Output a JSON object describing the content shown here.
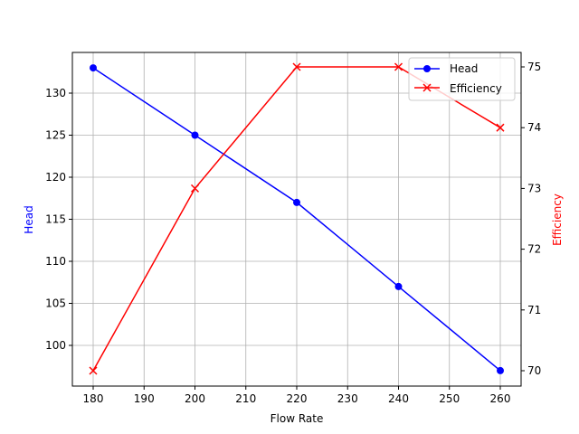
{
  "chart_data": {
    "type": "line",
    "title": "",
    "xlabel": "Flow Rate",
    "ylabel": "Head",
    "ylabel_right": "Efficiency",
    "x": [
      180,
      200,
      220,
      240,
      260
    ],
    "xticks": [
      180,
      190,
      200,
      210,
      220,
      230,
      240,
      250,
      260
    ],
    "yticks_left": [
      100,
      105,
      110,
      115,
      120,
      125,
      130
    ],
    "yticks_right": [
      70,
      71,
      72,
      73,
      74,
      75
    ],
    "grid": true,
    "legend_position": "upper right",
    "series": [
      {
        "name": "Head",
        "axis": "left",
        "color": "#0000ff",
        "marker": "circle",
        "values": [
          133,
          125,
          117,
          107,
          97
        ]
      },
      {
        "name": "Efficiency",
        "axis": "right",
        "color": "#ff0000",
        "marker": "x",
        "values": [
          70,
          73,
          75,
          75,
          74
        ]
      }
    ]
  }
}
